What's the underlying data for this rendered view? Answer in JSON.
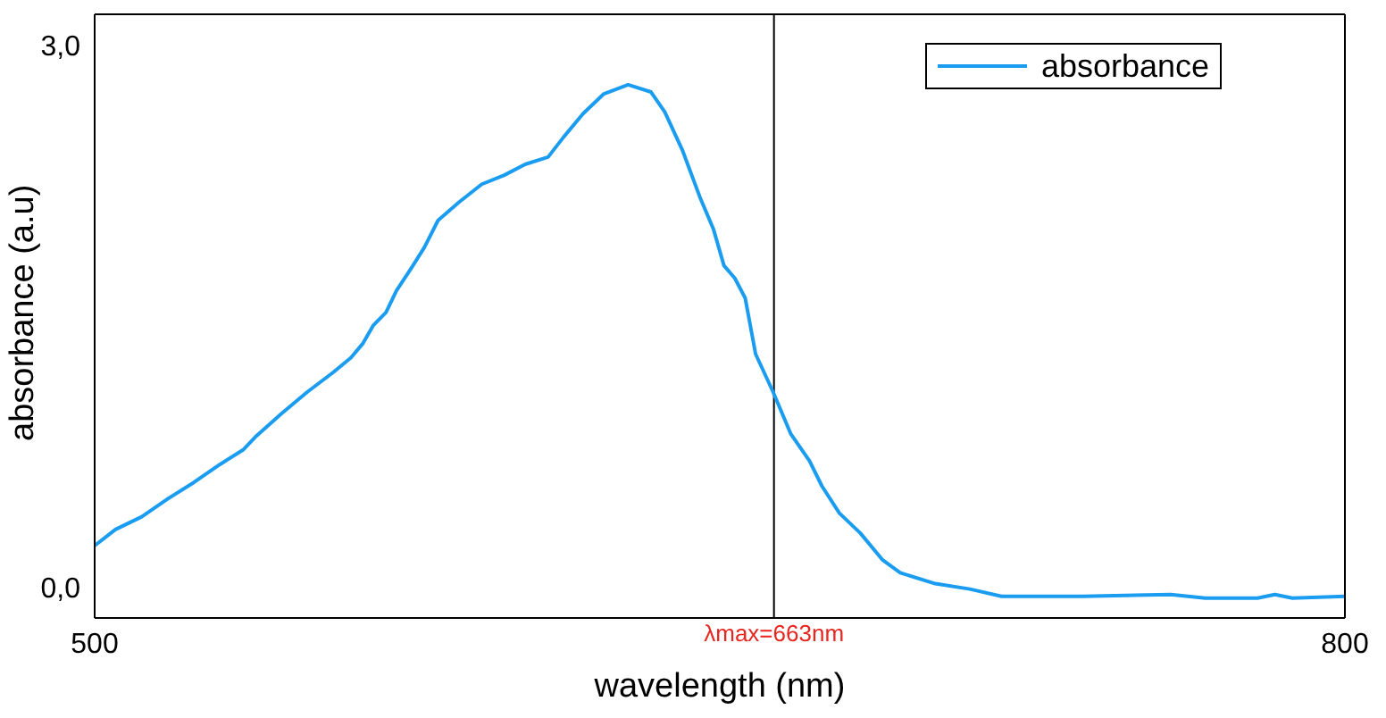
{
  "chart_data": {
    "type": "line",
    "xlabel": "wavelength (nm)",
    "ylabel": "absorbance (a.u)",
    "x": [
      500,
      505,
      511.3,
      517.6,
      523.8,
      530.1,
      535.6,
      538.5,
      544.8,
      551,
      557.3,
      561.5,
      564.4,
      566.9,
      569.9,
      572.4,
      576.1,
      579.1,
      582.4,
      587.4,
      592.9,
      598.3,
      603.3,
      608.8,
      612.5,
      617.2,
      622.2,
      628,
      633.5,
      636.8,
      641,
      645.2,
      648.5,
      651,
      653.6,
      656.1,
      658.6,
      662.8,
      667,
      671.5,
      674.5,
      678.7,
      683.7,
      689.1,
      693.3,
      701.7,
      710,
      717.6,
      737.2,
      758.2,
      766.5,
      779,
      783.2,
      787.4,
      800
    ],
    "series": [
      {
        "name": "absorbance",
        "color": "#1a9cf0",
        "values": [
          0.23,
          0.32,
          0.39,
          0.49,
          0.58,
          0.68,
          0.76,
          0.83,
          0.96,
          1.08,
          1.19,
          1.27,
          1.35,
          1.45,
          1.52,
          1.64,
          1.77,
          1.88,
          2.03,
          2.13,
          2.23,
          2.28,
          2.34,
          2.38,
          2.49,
          2.62,
          2.73,
          2.78,
          2.74,
          2.63,
          2.42,
          2.16,
          1.98,
          1.78,
          1.71,
          1.6,
          1.29,
          1.08,
          0.85,
          0.7,
          0.56,
          0.41,
          0.3,
          0.15,
          0.08,
          0.02,
          -0.01,
          -0.05,
          -0.05,
          -0.04,
          -0.06,
          -0.06,
          -0.04,
          -0.06,
          -0.05
        ]
      }
    ],
    "xlim": [
      500,
      800
    ],
    "xticks": [
      500,
      800
    ],
    "ylim": [
      -0.17,
      3.17
    ],
    "yticks": [
      {
        "value": 0,
        "label": "0,0"
      },
      {
        "value": 3,
        "label": "3,0"
      }
    ],
    "ref_lines": [
      {
        "axis": "x",
        "value": 663,
        "label": "λmax=663nm",
        "color": "#000000"
      }
    ],
    "grid": false,
    "legend": "top right",
    "marker": "none",
    "line_style": "solid"
  }
}
